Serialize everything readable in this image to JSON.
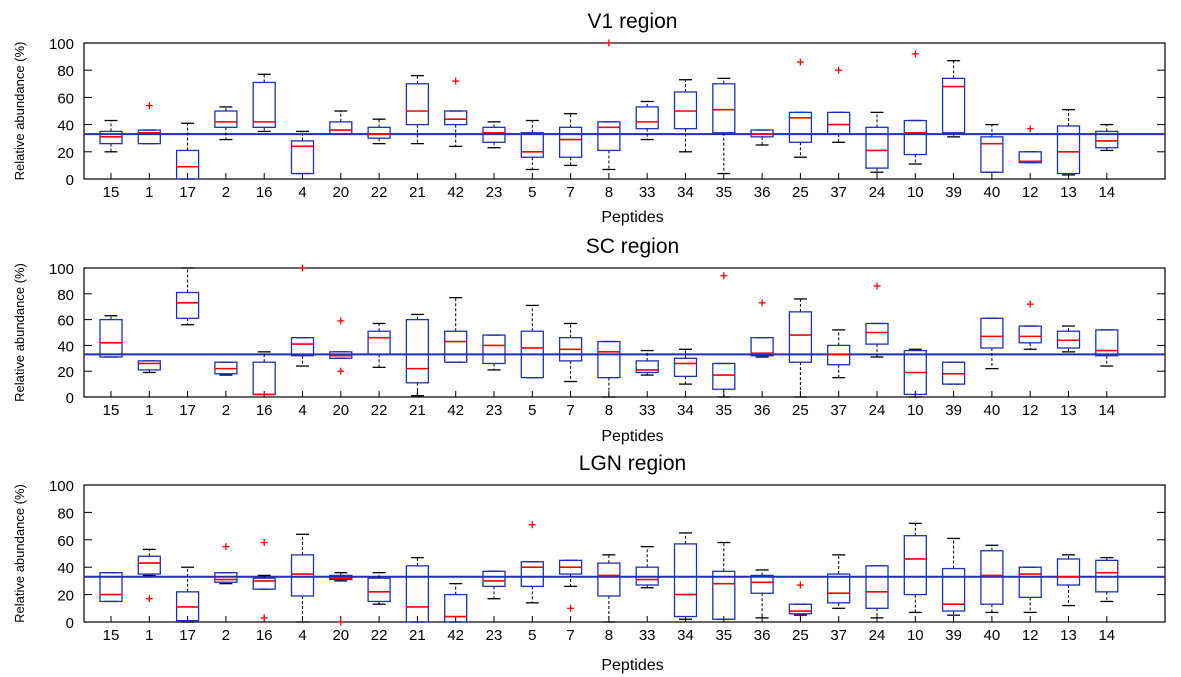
{
  "chart_data": [
    {
      "type": "box",
      "title": "V1 region",
      "xlabel": "Peptides",
      "ylabel": "Relative abundance (%)",
      "ylim": [
        0,
        100
      ],
      "yticks": [
        0,
        20,
        40,
        60,
        80,
        100
      ],
      "reference_line": 33,
      "categories": [
        "15",
        "1",
        "17",
        "2",
        "16",
        "4",
        "20",
        "22",
        "21",
        "42",
        "23",
        "5",
        "7",
        "8",
        "33",
        "34",
        "35",
        "36",
        "25",
        "37",
        "24",
        "10",
        "39",
        "40",
        "12",
        "13",
        "14"
      ],
      "boxes": [
        {
          "wl": 20,
          "q1": 26,
          "med": 31,
          "q3": 35,
          "wh": 43,
          "out": []
        },
        {
          "wl": 26,
          "q1": 26,
          "med": 34,
          "q3": 36,
          "wh": 36,
          "out": [
            54
          ]
        },
        {
          "wl": 0,
          "q1": 0,
          "med": 9,
          "q3": 21,
          "wh": 41,
          "out": []
        },
        {
          "wl": 29,
          "q1": 38,
          "med": 42,
          "q3": 50,
          "wh": 53,
          "out": []
        },
        {
          "wl": 35,
          "q1": 38,
          "med": 42,
          "q3": 71,
          "wh": 77,
          "out": []
        },
        {
          "wl": 4,
          "q1": 4,
          "med": 24,
          "q3": 28,
          "wh": 35,
          "out": []
        },
        {
          "wl": 33,
          "q1": 33,
          "med": 36,
          "q3": 42,
          "wh": 50,
          "out": []
        },
        {
          "wl": 26,
          "q1": 30,
          "med": 33,
          "q3": 38,
          "wh": 44,
          "out": []
        },
        {
          "wl": 26,
          "q1": 40,
          "med": 50,
          "q3": 70,
          "wh": 76,
          "out": []
        },
        {
          "wl": 24,
          "q1": 40,
          "med": 44,
          "q3": 50,
          "wh": 50,
          "out": [
            72
          ]
        },
        {
          "wl": 23,
          "q1": 27,
          "med": 34,
          "q3": 38,
          "wh": 42,
          "out": []
        },
        {
          "wl": 7,
          "q1": 16,
          "med": 20,
          "q3": 34,
          "wh": 43,
          "out": []
        },
        {
          "wl": 10,
          "q1": 16,
          "med": 29,
          "q3": 38,
          "wh": 48,
          "out": []
        },
        {
          "wl": 7,
          "q1": 21,
          "med": 38,
          "q3": 42,
          "wh": 42,
          "out": [
            100
          ]
        },
        {
          "wl": 29,
          "q1": 37,
          "med": 42,
          "q3": 53,
          "wh": 57,
          "out": []
        },
        {
          "wl": 20,
          "q1": 37,
          "med": 50,
          "q3": 64,
          "wh": 73,
          "out": []
        },
        {
          "wl": 4,
          "q1": 34,
          "med": 51,
          "q3": 70,
          "wh": 74,
          "out": []
        },
        {
          "wl": 25,
          "q1": 31,
          "med": 33,
          "q3": 36,
          "wh": 36,
          "out": []
        },
        {
          "wl": 16,
          "q1": 27,
          "med": 45,
          "q3": 49,
          "wh": 49,
          "out": [
            86
          ]
        },
        {
          "wl": 27,
          "q1": 33,
          "med": 40,
          "q3": 49,
          "wh": 49,
          "out": [
            80
          ]
        },
        {
          "wl": 5,
          "q1": 8,
          "med": 21,
          "q3": 38,
          "wh": 49,
          "out": []
        },
        {
          "wl": 11,
          "q1": 18,
          "med": 34,
          "q3": 43,
          "wh": 43,
          "out": [
            92
          ]
        },
        {
          "wl": 31,
          "q1": 34,
          "med": 68,
          "q3": 74,
          "wh": 87,
          "out": []
        },
        {
          "wl": 5,
          "q1": 5,
          "med": 26,
          "q3": 31,
          "wh": 40,
          "out": []
        },
        {
          "wl": 12,
          "q1": 12,
          "med": 13,
          "q3": 20,
          "wh": 20,
          "out": [
            37
          ]
        },
        {
          "wl": 3,
          "q1": 4,
          "med": 20,
          "q3": 39,
          "wh": 51,
          "out": []
        },
        {
          "wl": 21,
          "q1": 23,
          "med": 28,
          "q3": 35,
          "wh": 40,
          "out": []
        }
      ]
    },
    {
      "type": "box",
      "title": "SC region",
      "xlabel": "Peptides",
      "ylabel": "Relative abundance (%)",
      "ylim": [
        0,
        100
      ],
      "yticks": [
        0,
        20,
        40,
        60,
        80,
        100
      ],
      "reference_line": 33,
      "categories": [
        "15",
        "1",
        "17",
        "2",
        "16",
        "4",
        "20",
        "22",
        "21",
        "42",
        "23",
        "5",
        "7",
        "8",
        "33",
        "34",
        "35",
        "36",
        "25",
        "37",
        "24",
        "10",
        "39",
        "40",
        "12",
        "13",
        "14"
      ],
      "boxes": [
        {
          "wl": 31,
          "q1": 31,
          "med": 42,
          "q3": 60,
          "wh": 63,
          "out": []
        },
        {
          "wl": 19,
          "q1": 21,
          "med": 26,
          "q3": 28,
          "wh": 28,
          "out": []
        },
        {
          "wl": 56,
          "q1": 61,
          "med": 73,
          "q3": 81,
          "wh": 100,
          "out": []
        },
        {
          "wl": 17,
          "q1": 18,
          "med": 22,
          "q3": 27,
          "wh": 27,
          "out": []
        },
        {
          "wl": 2,
          "q1": 2,
          "med": 2,
          "q3": 27,
          "wh": 35,
          "out": []
        },
        {
          "wl": 24,
          "q1": 32,
          "med": 41,
          "q3": 46,
          "wh": 46,
          "out": [
            100
          ]
        },
        {
          "wl": 30,
          "q1": 30,
          "med": 32,
          "q3": 35,
          "wh": 35,
          "out": [
            59,
            20
          ]
        },
        {
          "wl": 23,
          "q1": 33,
          "med": 46,
          "q3": 51,
          "wh": 57,
          "out": []
        },
        {
          "wl": 1,
          "q1": 11,
          "med": 22,
          "q3": 60,
          "wh": 64,
          "out": []
        },
        {
          "wl": 27,
          "q1": 27,
          "med": 43,
          "q3": 51,
          "wh": 77,
          "out": []
        },
        {
          "wl": 21,
          "q1": 26,
          "med": 40,
          "q3": 48,
          "wh": 48,
          "out": []
        },
        {
          "wl": 15,
          "q1": 15,
          "med": 38,
          "q3": 51,
          "wh": 71,
          "out": []
        },
        {
          "wl": 12,
          "q1": 28,
          "med": 37,
          "q3": 46,
          "wh": 57,
          "out": []
        },
        {
          "wl": 0,
          "q1": 15,
          "med": 35,
          "q3": 43,
          "wh": 43,
          "out": []
        },
        {
          "wl": 17,
          "q1": 19,
          "med": 21,
          "q3": 28,
          "wh": 36,
          "out": []
        },
        {
          "wl": 10,
          "q1": 16,
          "med": 26,
          "q3": 30,
          "wh": 37,
          "out": []
        },
        {
          "wl": 0,
          "q1": 6,
          "med": 17,
          "q3": 26,
          "wh": 26,
          "out": [
            94
          ]
        },
        {
          "wl": 31,
          "q1": 32,
          "med": 34,
          "q3": 46,
          "wh": 46,
          "out": [
            73
          ]
        },
        {
          "wl": 0,
          "q1": 27,
          "med": 48,
          "q3": 66,
          "wh": 76,
          "out": []
        },
        {
          "wl": 15,
          "q1": 25,
          "med": 33,
          "q3": 40,
          "wh": 52,
          "out": []
        },
        {
          "wl": 31,
          "q1": 41,
          "med": 50,
          "q3": 57,
          "wh": 57,
          "out": [
            86
          ]
        },
        {
          "wl": 0,
          "q1": 2,
          "med": 19,
          "q3": 36,
          "wh": 37,
          "out": []
        },
        {
          "wl": 10,
          "q1": 10,
          "med": 18,
          "q3": 27,
          "wh": 27,
          "out": []
        },
        {
          "wl": 22,
          "q1": 38,
          "med": 47,
          "q3": 61,
          "wh": 61,
          "out": []
        },
        {
          "wl": 37,
          "q1": 42,
          "med": 47,
          "q3": 55,
          "wh": 55,
          "out": [
            72
          ]
        },
        {
          "wl": 35,
          "q1": 38,
          "med": 44,
          "q3": 51,
          "wh": 55,
          "out": []
        },
        {
          "wl": 24,
          "q1": 32,
          "med": 36,
          "q3": 52,
          "wh": 52,
          "out": []
        }
      ]
    },
    {
      "type": "box",
      "title": "LGN region",
      "xlabel": "Peptides",
      "ylabel": "Relative abundance (%)",
      "ylim": [
        0,
        100
      ],
      "yticks": [
        0,
        20,
        40,
        60,
        80,
        100
      ],
      "reference_line": 33,
      "categories": [
        "15",
        "1",
        "17",
        "2",
        "16",
        "4",
        "20",
        "22",
        "21",
        "42",
        "23",
        "5",
        "7",
        "8",
        "33",
        "34",
        "35",
        "36",
        "25",
        "37",
        "24",
        "10",
        "39",
        "40",
        "12",
        "13",
        "14"
      ],
      "boxes": [
        {
          "wl": 15,
          "q1": 15,
          "med": 20,
          "q3": 36,
          "wh": 36,
          "out": []
        },
        {
          "wl": 34,
          "q1": 35,
          "med": 43,
          "q3": 48,
          "wh": 53,
          "out": [
            17
          ]
        },
        {
          "wl": 0,
          "q1": 1,
          "med": 11,
          "q3": 22,
          "wh": 40,
          "out": []
        },
        {
          "wl": 28,
          "q1": 29,
          "med": 31,
          "q3": 36,
          "wh": 36,
          "out": [
            55
          ]
        },
        {
          "wl": 24,
          "q1": 24,
          "med": 30,
          "q3": 32,
          "wh": 34,
          "out": [
            58,
            3
          ]
        },
        {
          "wl": 0,
          "q1": 19,
          "med": 35,
          "q3": 49,
          "wh": 64,
          "out": []
        },
        {
          "wl": 30,
          "q1": 31,
          "med": 32,
          "q3": 34,
          "wh": 36,
          "out": [
            0
          ]
        },
        {
          "wl": 13,
          "q1": 15,
          "med": 22,
          "q3": 32,
          "wh": 36,
          "out": []
        },
        {
          "wl": 0,
          "q1": 0,
          "med": 11,
          "q3": 41,
          "wh": 47,
          "out": []
        },
        {
          "wl": 0,
          "q1": 0,
          "med": 4,
          "q3": 20,
          "wh": 28,
          "out": []
        },
        {
          "wl": 17,
          "q1": 26,
          "med": 30,
          "q3": 37,
          "wh": 37,
          "out": []
        },
        {
          "wl": 14,
          "q1": 26,
          "med": 40,
          "q3": 44,
          "wh": 44,
          "out": [
            71
          ]
        },
        {
          "wl": 26,
          "q1": 35,
          "med": 40,
          "q3": 45,
          "wh": 45,
          "out": [
            10
          ]
        },
        {
          "wl": 0,
          "q1": 19,
          "med": 34,
          "q3": 43,
          "wh": 49,
          "out": []
        },
        {
          "wl": 25,
          "q1": 27,
          "med": 31,
          "q3": 40,
          "wh": 55,
          "out": []
        },
        {
          "wl": 2,
          "q1": 4,
          "med": 20,
          "q3": 57,
          "wh": 65,
          "out": []
        },
        {
          "wl": 2,
          "q1": 2,
          "med": 28,
          "q3": 37,
          "wh": 58,
          "out": []
        },
        {
          "wl": 3,
          "q1": 21,
          "med": 29,
          "q3": 34,
          "wh": 38,
          "out": []
        },
        {
          "wl": 5,
          "q1": 6,
          "med": 8,
          "q3": 13,
          "wh": 13,
          "out": [
            27
          ]
        },
        {
          "wl": 10,
          "q1": 14,
          "med": 21,
          "q3": 35,
          "wh": 49,
          "out": []
        },
        {
          "wl": 3,
          "q1": 10,
          "med": 22,
          "q3": 41,
          "wh": 41,
          "out": []
        },
        {
          "wl": 7,
          "q1": 20,
          "med": 46,
          "q3": 63,
          "wh": 72,
          "out": []
        },
        {
          "wl": 5,
          "q1": 8,
          "med": 13,
          "q3": 39,
          "wh": 61,
          "out": []
        },
        {
          "wl": 7,
          "q1": 13,
          "med": 34,
          "q3": 52,
          "wh": 56,
          "out": []
        },
        {
          "wl": 7,
          "q1": 18,
          "med": 35,
          "q3": 40,
          "wh": 40,
          "out": []
        },
        {
          "wl": 12,
          "q1": 27,
          "med": 33,
          "q3": 46,
          "wh": 49,
          "out": []
        },
        {
          "wl": 15,
          "q1": 22,
          "med": 36,
          "q3": 45,
          "wh": 47,
          "out": []
        }
      ]
    }
  ],
  "colors": {
    "box": "#1f2fb8",
    "median": "#ff0000",
    "outlier": "#ff0000",
    "whisker": "#000000",
    "reference_line": "#1f2fb8",
    "axes": "#000000"
  }
}
